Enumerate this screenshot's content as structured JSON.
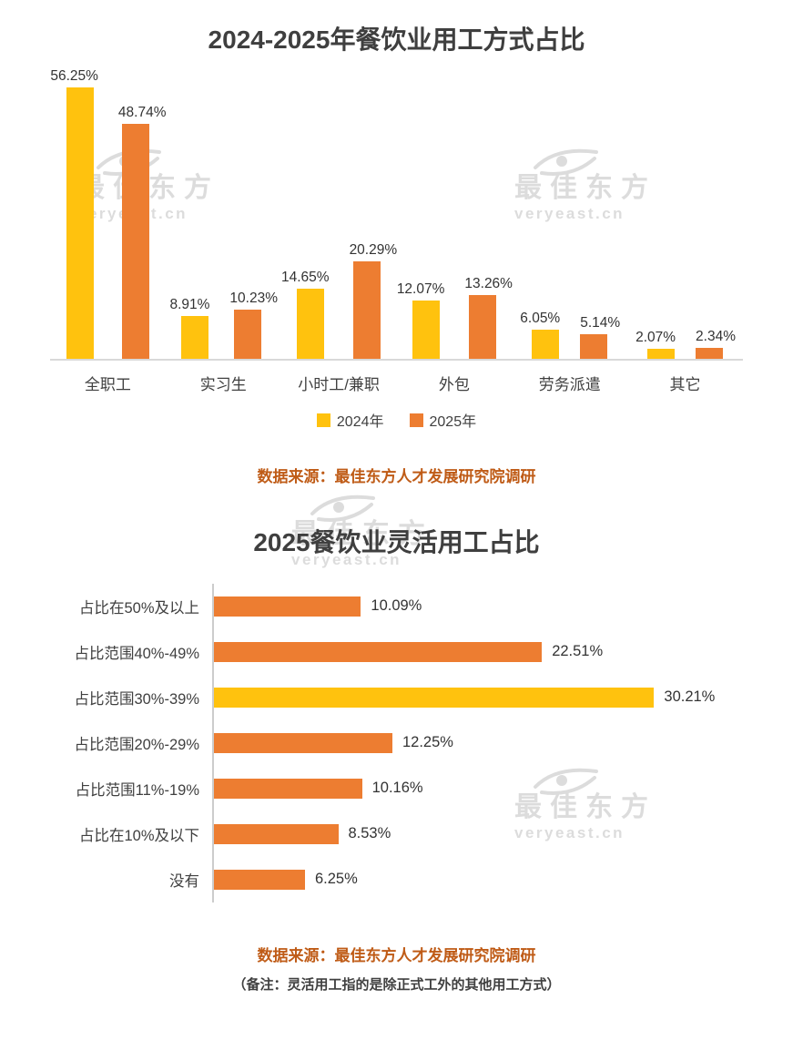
{
  "watermark": {
    "brand": "最佳东方",
    "domain": "veryeast.cn"
  },
  "chart_data": [
    {
      "type": "bar",
      "orientation": "vertical",
      "title": "2024-2025年餐饮业用工方式占比",
      "categories": [
        "全职工",
        "实习生",
        "小时工/兼职",
        "外包",
        "劳务派遣",
        "其它"
      ],
      "series": [
        {
          "name": "2024年",
          "color": "#FFC20E",
          "values": [
            56.25,
            8.91,
            14.65,
            12.07,
            6.05,
            2.07
          ]
        },
        {
          "name": "2025年",
          "color": "#ED7D31",
          "values": [
            48.74,
            10.23,
            20.29,
            13.26,
            5.14,
            2.34
          ]
        }
      ],
      "ylim": [
        0,
        60
      ],
      "grid": false,
      "legend_position": "bottom",
      "value_suffix": "%",
      "source": "数据来源：最佳东方人才发展研究院调研"
    },
    {
      "type": "bar",
      "orientation": "horizontal",
      "title": "2025餐饮业灵活用工占比",
      "categories": [
        "占比在50%及以上",
        "占比范围40%-49%",
        "占比范围30%-39%",
        "占比范围20%-29%",
        "占比范围11%-19%",
        "占比在10%及以下",
        "没有"
      ],
      "values": [
        10.09,
        22.51,
        30.21,
        12.25,
        10.16,
        8.53,
        6.25
      ],
      "highlight_index": 2,
      "colors": {
        "default": "#ED7D31",
        "highlight": "#FFC20E"
      },
      "xlim": [
        0,
        32
      ],
      "grid": false,
      "value_suffix": "%",
      "source": "数据来源：最佳东方人才发展研究院调研",
      "note": "（备注：灵活用工指的是除正式工外的其他用工方式）"
    }
  ]
}
